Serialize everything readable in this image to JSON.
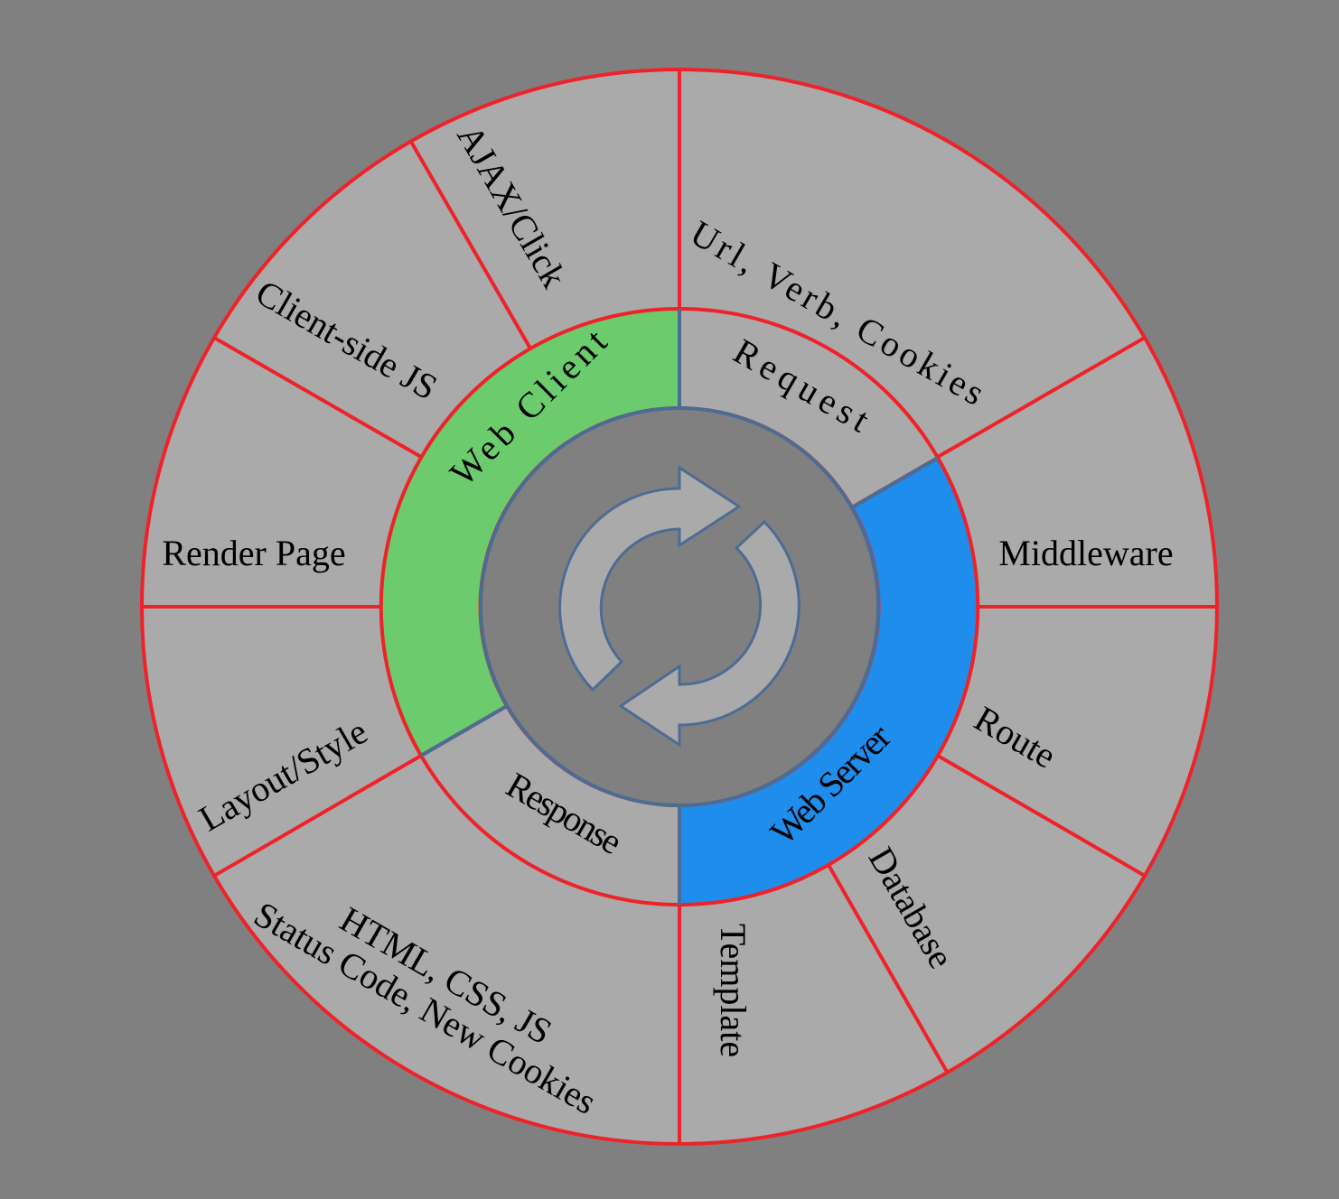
{
  "colors": {
    "background": "#808080",
    "outer_fill": "#aaaaaa",
    "web_client_fill": "#6bcb6d",
    "web_server_fill": "#1f8deb",
    "divider_red": "#ee2229",
    "inner_stroke": "#4c6c94",
    "center_fill": "#808080"
  },
  "center_icon": "refresh-cycle-icon",
  "middle_ring": [
    {
      "key": "web_client",
      "label": "Web Client"
    },
    {
      "key": "request",
      "label": "Request"
    },
    {
      "key": "web_server",
      "label": "Web Server"
    },
    {
      "key": "response",
      "label": "Response"
    }
  ],
  "outer_ring": [
    {
      "key": "url_verb_cookies",
      "label": "Url, Verb, Cookies"
    },
    {
      "key": "middleware",
      "label": "Middleware"
    },
    {
      "key": "route",
      "label": "Route"
    },
    {
      "key": "database",
      "label": "Database"
    },
    {
      "key": "template",
      "label": "Template"
    },
    {
      "key": "response_body",
      "line1": "HTML, CSS, JS",
      "line2": "Status Code, New Cookies"
    },
    {
      "key": "layout_style",
      "label": "Layout/Style"
    },
    {
      "key": "render_page",
      "label": "Render Page"
    },
    {
      "key": "client_side_js",
      "label": "Client-side JS"
    },
    {
      "key": "ajax_click",
      "label": "AJAX/Click"
    }
  ]
}
